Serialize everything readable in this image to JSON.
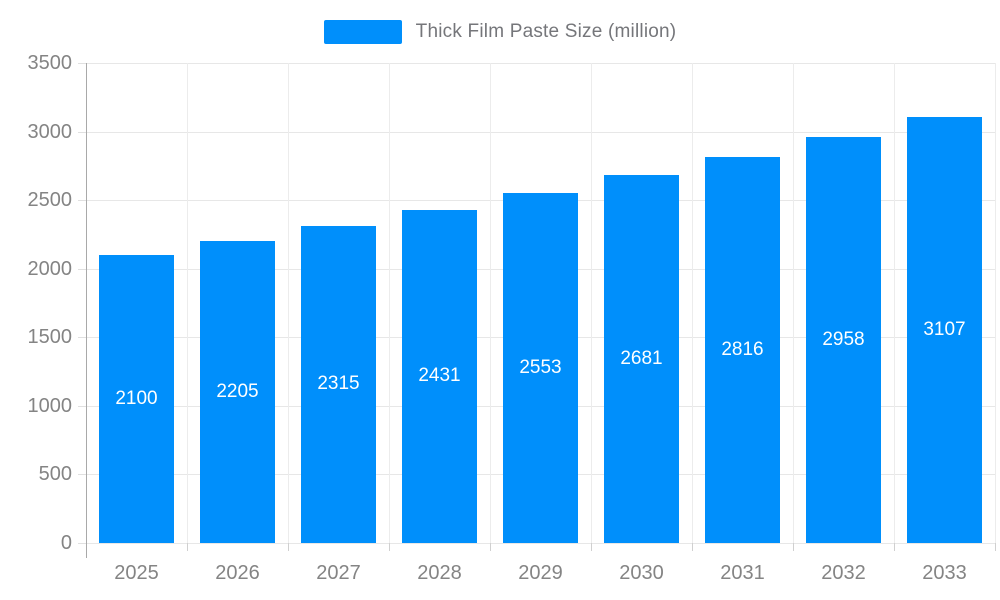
{
  "chart_data": {
    "type": "bar",
    "title": "Thick Film Paste Size (million)",
    "categories": [
      "2025",
      "2026",
      "2027",
      "2028",
      "2029",
      "2030",
      "2031",
      "2032",
      "2033"
    ],
    "series": [
      {
        "name": "Thick Film Paste Size (million)",
        "values": [
          2100,
          2205,
          2315,
          2431,
          2553,
          2681,
          2816,
          2958,
          3107
        ]
      }
    ],
    "data_labels": [
      "2100",
      "2205",
      "2315",
      "2431",
      "2553",
      "2681",
      "2816",
      "2958",
      "3107"
    ],
    "xlabel": "",
    "ylabel": "",
    "ylim": [
      0,
      3500
    ],
    "yticks": [
      0,
      500,
      1000,
      1500,
      2000,
      2500,
      3000,
      3500
    ],
    "grid": true,
    "legend_position": "top",
    "colors": {
      "bar": "#008FFB",
      "bar_label_text": "#ffffff",
      "axis_label_text": "#848484",
      "legend_text": "#75767a",
      "gridline": "#e7e7e7"
    }
  }
}
